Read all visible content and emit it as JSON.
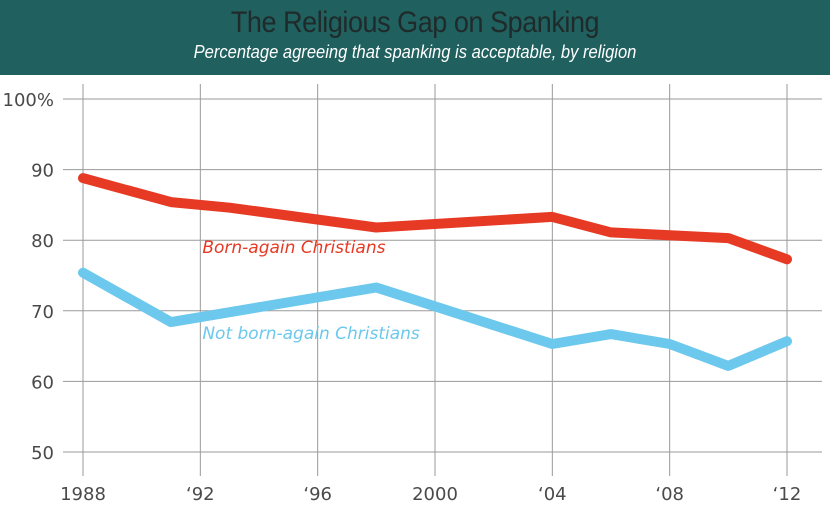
{
  "header": {
    "title": "The Religious Gap on Spanking",
    "subtitle": "Percentage agreeing that spanking is acceptable, by religion"
  },
  "colors": {
    "header_bg": "#20605f",
    "born_again": "#e63a24",
    "not_born_again": "#6cc8ec",
    "grid": "#9a9a9a"
  },
  "chart_data": {
    "type": "line",
    "title": "The Religious Gap on Spanking",
    "subtitle": "Percentage agreeing that spanking is acceptable, by religion",
    "xlabel": "",
    "ylabel": "",
    "xlim": [
      1986.8,
      2013.2
    ],
    "ylim": [
      50,
      100
    ],
    "grid": true,
    "x_ticks": [
      {
        "value": 1988,
        "label": "1988"
      },
      {
        "value": 1992,
        "label": "‘92"
      },
      {
        "value": 1996,
        "label": "‘96"
      },
      {
        "value": 2000,
        "label": "2000"
      },
      {
        "value": 2004,
        "label": "‘04"
      },
      {
        "value": 2008,
        "label": "‘08"
      },
      {
        "value": 2012,
        "label": "‘12"
      }
    ],
    "y_ticks": [
      {
        "value": 100,
        "label": "100%"
      },
      {
        "value": 90,
        "label": "90"
      },
      {
        "value": 80,
        "label": "80"
      },
      {
        "value": 70,
        "label": "70"
      },
      {
        "value": 60,
        "label": "60"
      },
      {
        "value": 50,
        "label": "50"
      }
    ],
    "series": [
      {
        "name": "Born-again Christians",
        "color": "#e63a24",
        "label_position": {
          "x": 1992,
          "y": 78.2
        },
        "points": [
          {
            "x": 1988,
            "y": 88.8
          },
          {
            "x": 1991,
            "y": 85.4
          },
          {
            "x": 1993,
            "y": 84.6
          },
          {
            "x": 1998,
            "y": 81.8
          },
          {
            "x": 2004,
            "y": 83.3
          },
          {
            "x": 2006,
            "y": 81.1
          },
          {
            "x": 2010,
            "y": 80.3
          },
          {
            "x": 2012,
            "y": 77.3
          }
        ]
      },
      {
        "name": "Not born-again Christians",
        "color": "#6cc8ec",
        "label_position": {
          "x": 1992,
          "y": 66.0
        },
        "points": [
          {
            "x": 1988,
            "y": 75.4
          },
          {
            "x": 1991,
            "y": 68.4
          },
          {
            "x": 1998,
            "y": 73.3
          },
          {
            "x": 2004,
            "y": 65.3
          },
          {
            "x": 2006,
            "y": 66.7
          },
          {
            "x": 2008,
            "y": 65.3
          },
          {
            "x": 2010,
            "y": 62.2
          },
          {
            "x": 2012,
            "y": 65.7
          }
        ]
      }
    ]
  }
}
